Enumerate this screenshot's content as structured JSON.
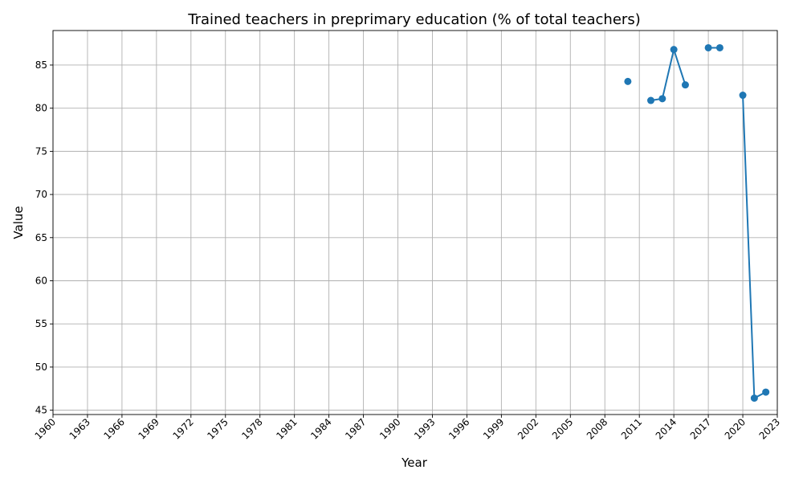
{
  "chart_data": {
    "type": "line",
    "title": "Trained teachers in preprimary education (% of total teachers)",
    "xlabel": "Year",
    "ylabel": "Value",
    "xlim": [
      1960,
      2023
    ],
    "ylim": [
      44.5,
      89
    ],
    "x_ticks": [
      1960,
      1963,
      1966,
      1969,
      1972,
      1975,
      1978,
      1981,
      1984,
      1987,
      1990,
      1993,
      1996,
      1999,
      2002,
      2005,
      2008,
      2011,
      2014,
      2017,
      2020,
      2023
    ],
    "y_ticks": [
      45,
      50,
      55,
      60,
      65,
      70,
      75,
      80,
      85
    ],
    "grid": true,
    "series": [
      {
        "color": "#1f77b4",
        "marker": "circle",
        "points": [
          {
            "x": 2010,
            "y": 83.1
          },
          {
            "x": 2011,
            "y": null
          },
          {
            "x": 2012,
            "y": 80.9
          },
          {
            "x": 2013,
            "y": 81.1
          },
          {
            "x": 2014,
            "y": 86.8
          },
          {
            "x": 2015,
            "y": 82.7
          },
          {
            "x": 2016,
            "y": null
          },
          {
            "x": 2017,
            "y": 87.0
          },
          {
            "x": 2018,
            "y": 87.0
          },
          {
            "x": 2019,
            "y": null
          },
          {
            "x": 2020,
            "y": 81.5
          },
          {
            "x": 2021,
            "y": 46.4
          },
          {
            "x": 2022,
            "y": 47.1
          }
        ]
      }
    ]
  }
}
